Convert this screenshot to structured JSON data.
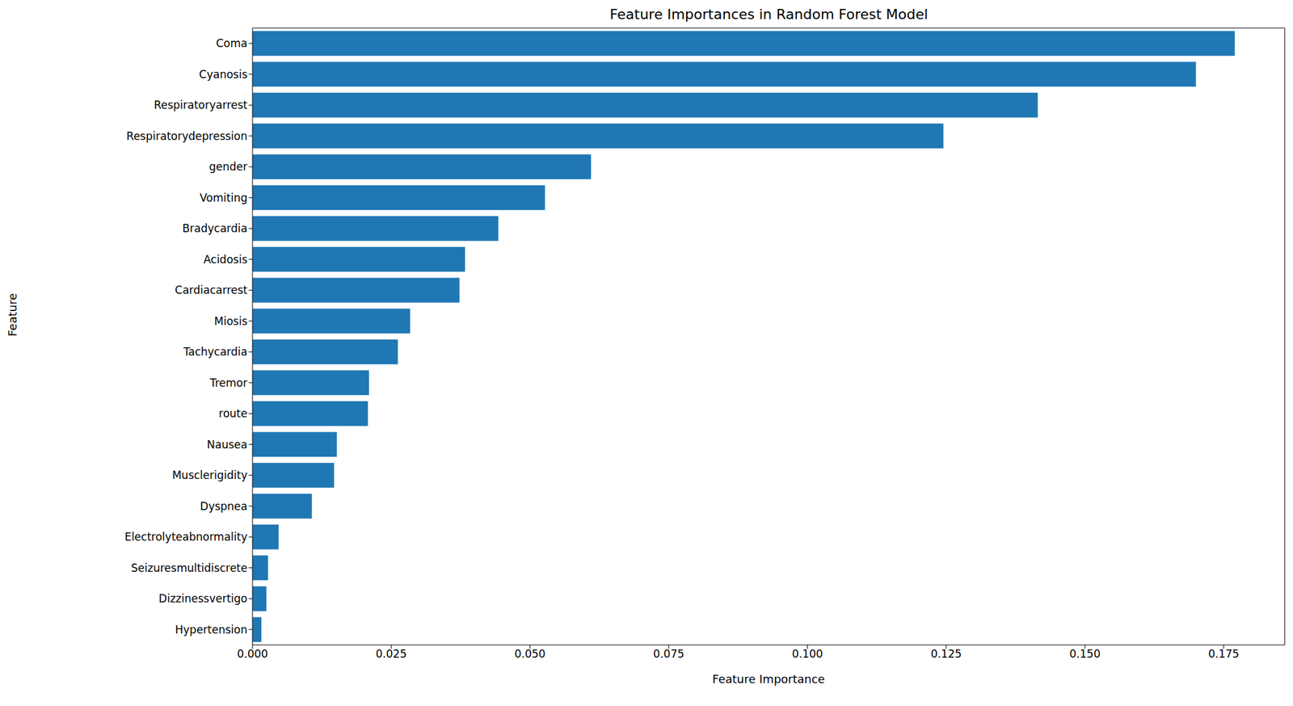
{
  "chart_data": {
    "type": "bar",
    "orientation": "horizontal",
    "title": "Feature Importances in Random Forest Model",
    "x_label": "Feature Importance",
    "y_label": "Feature",
    "categories": [
      "Coma",
      "Cyanosis",
      "Respiratoryarrest",
      "Respiratorydepression",
      "gender",
      "Vomiting",
      "Bradycardia",
      "Acidosis",
      "Cardiacarrest",
      "Miosis",
      "Tachycardia",
      "Tremor",
      "route",
      "Nausea",
      "Musclerigidity",
      "Dyspnea",
      "Electrolyteabnormality",
      "Seizuresmultidiscrete",
      "Dizzinessvertigo",
      "Hypertension"
    ],
    "values": [
      0.177,
      0.17,
      0.1415,
      0.1245,
      0.061,
      0.0527,
      0.0443,
      0.0383,
      0.0373,
      0.0284,
      0.0262,
      0.021,
      0.0208,
      0.0152,
      0.0147,
      0.0107,
      0.0047,
      0.0028,
      0.0025,
      0.0016
    ],
    "color": "#1f77b4",
    "xlim": [
      0,
      0.186
    ],
    "xticks": [
      {
        "value": 0,
        "label": "0.000"
      },
      {
        "value": 0.025,
        "label": "0.025"
      },
      {
        "value": 0.05,
        "label": "0.050"
      },
      {
        "value": 0.075,
        "label": "0.075"
      },
      {
        "value": 0.1,
        "label": "0.100"
      },
      {
        "value": 0.125,
        "label": "0.125"
      },
      {
        "value": 0.15,
        "label": "0.150"
      },
      {
        "value": 0.175,
        "label": "0.175"
      }
    ],
    "grid": false
  }
}
